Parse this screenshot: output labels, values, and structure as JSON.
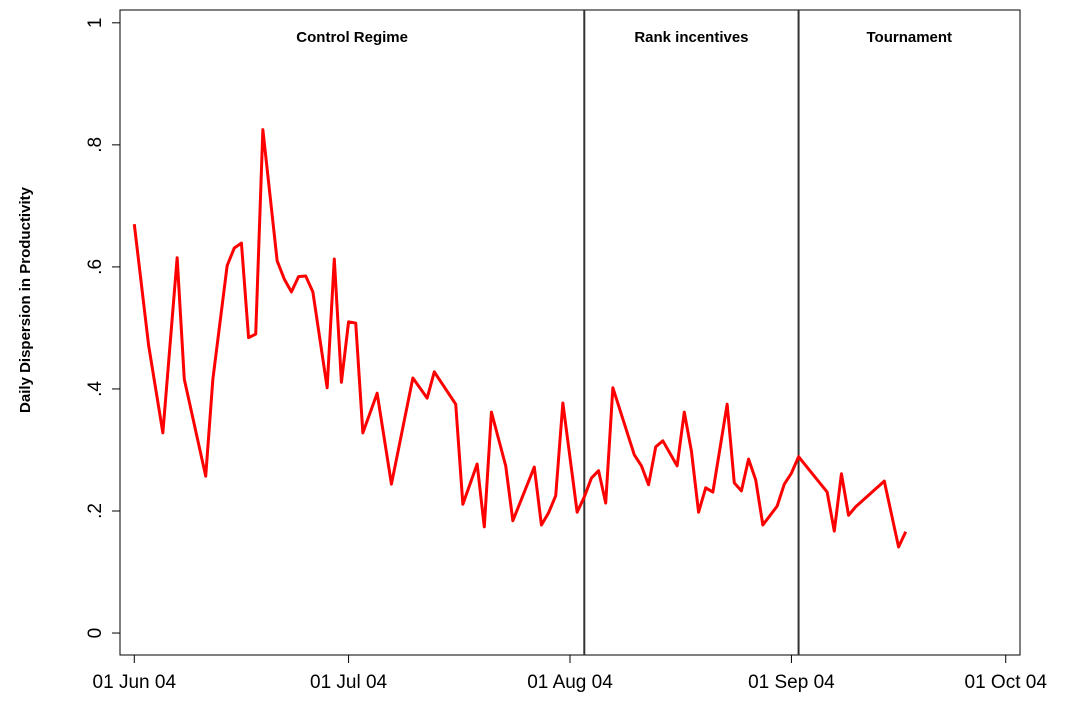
{
  "chart_data": {
    "type": "line",
    "y_label": "Daily Dispersion in Productivity",
    "x": [
      "2004-06-01",
      "2004-06-03",
      "2004-06-05",
      "2004-06-07",
      "2004-06-08",
      "2004-06-11",
      "2004-06-12",
      "2004-06-14",
      "2004-06-15",
      "2004-06-16",
      "2004-06-17",
      "2004-06-18",
      "2004-06-19",
      "2004-06-21",
      "2004-06-22",
      "2004-06-23",
      "2004-06-24",
      "2004-06-25",
      "2004-06-26",
      "2004-06-28",
      "2004-06-29",
      "2004-06-30",
      "2004-07-01",
      "2004-07-02",
      "2004-07-03",
      "2004-07-05",
      "2004-07-07",
      "2004-07-10",
      "2004-07-12",
      "2004-07-13",
      "2004-07-16",
      "2004-07-17",
      "2004-07-19",
      "2004-07-20",
      "2004-07-21",
      "2004-07-23",
      "2004-07-24",
      "2004-07-27",
      "2004-07-28",
      "2004-07-29",
      "2004-07-30",
      "2004-07-31",
      "2004-08-02",
      "2004-08-03",
      "2004-08-04",
      "2004-08-05",
      "2004-08-06",
      "2004-08-07",
      "2004-08-10",
      "2004-08-11",
      "2004-08-12",
      "2004-08-13",
      "2004-08-14",
      "2004-08-16",
      "2004-08-17",
      "2004-08-18",
      "2004-08-19",
      "2004-08-20",
      "2004-08-21",
      "2004-08-23",
      "2004-08-24",
      "2004-08-25",
      "2004-08-26",
      "2004-08-27",
      "2004-08-28",
      "2004-08-30",
      "2004-08-31",
      "2004-09-01",
      "2004-09-02",
      "2004-09-06",
      "2004-09-07",
      "2004-09-08",
      "2004-09-09",
      "2004-09-10",
      "2004-09-14",
      "2004-09-16",
      "2004-09-17"
    ],
    "series": [
      {
        "color": "#ff0000",
        "values": [
          0.67,
          0.472,
          0.328,
          0.615,
          0.416,
          0.257,
          0.416,
          0.602,
          0.631,
          0.639,
          0.484,
          0.49,
          0.825,
          0.61,
          0.58,
          0.559,
          0.584,
          0.585,
          0.559,
          0.402,
          0.613,
          0.411,
          0.51,
          0.508,
          0.328,
          0.393,
          0.244,
          0.418,
          0.385,
          0.428,
          0.375,
          0.211,
          0.277,
          0.174,
          0.362,
          0.274,
          0.184,
          0.272,
          0.177,
          0.197,
          0.225,
          0.377,
          0.198,
          0.223,
          0.254,
          0.266,
          0.213,
          0.402,
          0.292,
          0.274,
          0.243,
          0.305,
          0.315,
          0.274,
          0.362,
          0.298,
          0.198,
          0.238,
          0.231,
          0.375,
          0.246,
          0.233,
          0.285,
          0.251,
          0.177,
          0.208,
          0.244,
          0.262,
          0.289,
          0.231,
          0.167,
          0.261,
          0.193,
          0.207,
          0.249,
          0.141,
          0.166
        ]
      }
    ],
    "xlim": [
      "2004-05-30",
      "2004-10-03"
    ],
    "xticks": [
      {
        "value": "2004-06-01",
        "label": "01 Jun 04"
      },
      {
        "value": "2004-07-01",
        "label": "01 Jul 04"
      },
      {
        "value": "2004-08-01",
        "label": "01 Aug 04"
      },
      {
        "value": "2004-09-01",
        "label": "01 Sep 04"
      },
      {
        "value": "2004-10-01",
        "label": "01 Oct 04"
      }
    ],
    "ylim": [
      -0.036,
      1.021
    ],
    "yticks": [
      0,
      {
        "value": 0.2,
        "label": ".2"
      },
      {
        "value": 0.4,
        "label": ".4"
      },
      {
        "value": 0.6,
        "label": ".6"
      },
      {
        "value": 0.8,
        "label": ".8"
      },
      1
    ],
    "regime_lines": [
      "2004-08-03",
      "2004-09-02"
    ],
    "regime_labels": [
      "Control Regime",
      "Rank incentives",
      "Tournament"
    ],
    "grid": false
  }
}
